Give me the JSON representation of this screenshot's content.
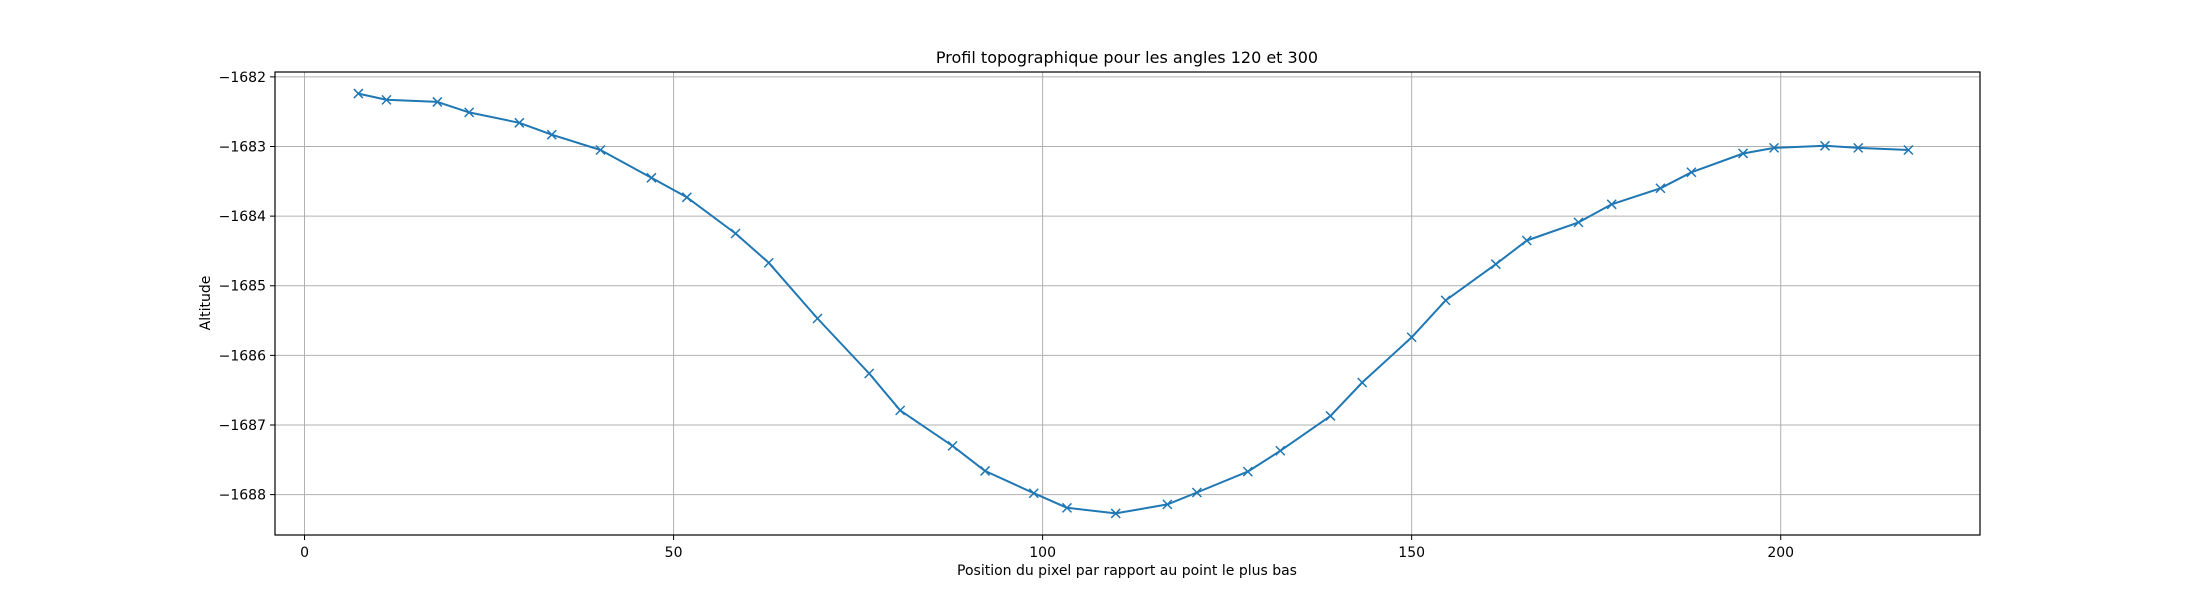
{
  "chart_data": {
    "type": "line",
    "title": "Profil topographique pour les angles 120 et 300",
    "xlabel": "Position du pixel par rapport au point le plus bas",
    "ylabel": "Altitude",
    "xlim": [
      -4,
      227
    ],
    "ylim": [
      -1688.58,
      -1681.93
    ],
    "xticks": [
      0,
      50,
      100,
      150,
      200
    ],
    "yticks": [
      -1682,
      -1683,
      -1684,
      -1685,
      -1686,
      -1687,
      -1688
    ],
    "grid": true,
    "series": [
      {
        "color": "#1f77b4",
        "marker": "x",
        "x": [
          7.3,
          11.1,
          18.0,
          22.3,
          29.1,
          33.5,
          40.1,
          47.0,
          51.8,
          58.4,
          62.9,
          69.5,
          76.5,
          80.7,
          87.8,
          92.2,
          98.8,
          103.3,
          109.9,
          116.9,
          120.9,
          127.8,
          132.2,
          139.0,
          143.3,
          150.0,
          154.6,
          161.4,
          165.6,
          172.6,
          177.1,
          183.7,
          187.9,
          194.9,
          199.1,
          206.0,
          210.5,
          217.3
        ],
        "y": [
          -1682.24,
          -1682.33,
          -1682.36,
          -1682.51,
          -1682.66,
          -1682.83,
          -1683.05,
          -1683.45,
          -1683.73,
          -1684.25,
          -1684.67,
          -1685.47,
          -1686.26,
          -1686.79,
          -1687.3,
          -1687.66,
          -1687.98,
          -1688.19,
          -1688.27,
          -1688.14,
          -1687.97,
          -1687.67,
          -1687.37,
          -1686.87,
          -1686.39,
          -1685.74,
          -1685.21,
          -1684.69,
          -1684.35,
          -1684.09,
          -1683.83,
          -1683.6,
          -1683.37,
          -1683.1,
          -1683.02,
          -1682.99,
          -1683.02,
          -1683.05
        ]
      }
    ]
  }
}
